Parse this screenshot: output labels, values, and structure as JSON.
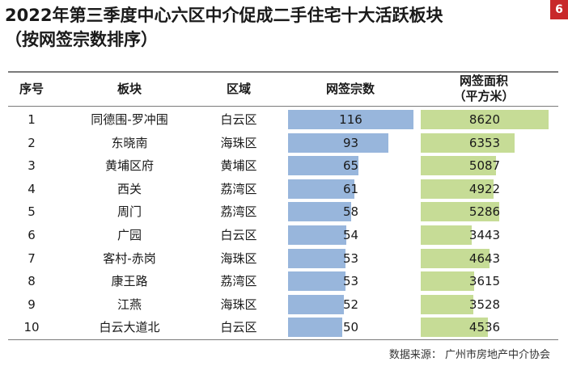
{
  "page_number": "6",
  "title_line1": "2022年第三季度中心六区中介促成二手住宅十大活跃板块",
  "title_line2": "（按网签宗数排序）",
  "source": "数据来源：  广州市房地产中介协会",
  "colors": {
    "blue_bar": "#98b6dc",
    "green_bar": "#c6dc96",
    "badge": "#c8282a"
  },
  "chart_data": {
    "type": "table",
    "headers": {
      "rank": "序号",
      "plate": "板块",
      "district": "区域",
      "count": "网签宗数",
      "area": "网签面积\n（平方米）"
    },
    "rows": [
      {
        "rank": "1",
        "plate": "同德围-罗冲围",
        "district": "白云区",
        "count": 116,
        "area": 8620
      },
      {
        "rank": "2",
        "plate": "东晓南",
        "district": "海珠区",
        "count": 93,
        "area": 6353
      },
      {
        "rank": "3",
        "plate": "黄埔区府",
        "district": "黄埔区",
        "count": 65,
        "area": 5087
      },
      {
        "rank": "4",
        "plate": "西关",
        "district": "荔湾区",
        "count": 61,
        "area": 4922
      },
      {
        "rank": "5",
        "plate": "周门",
        "district": "荔湾区",
        "count": 58,
        "area": 5286
      },
      {
        "rank": "6",
        "plate": "广园",
        "district": "白云区",
        "count": 54,
        "area": 3443
      },
      {
        "rank": "7",
        "plate": "客村-赤岗",
        "district": "海珠区",
        "count": 53,
        "area": 4643
      },
      {
        "rank": "8",
        "plate": "康王路",
        "district": "荔湾区",
        "count": 53,
        "area": 3615
      },
      {
        "rank": "9",
        "plate": "江燕",
        "district": "海珠区",
        "count": 52,
        "area": 3528
      },
      {
        "rank": "10",
        "plate": "白云大道北",
        "district": "白云区",
        "count": 50,
        "area": 4536
      }
    ],
    "count_max": 116,
    "area_max": 8620
  }
}
